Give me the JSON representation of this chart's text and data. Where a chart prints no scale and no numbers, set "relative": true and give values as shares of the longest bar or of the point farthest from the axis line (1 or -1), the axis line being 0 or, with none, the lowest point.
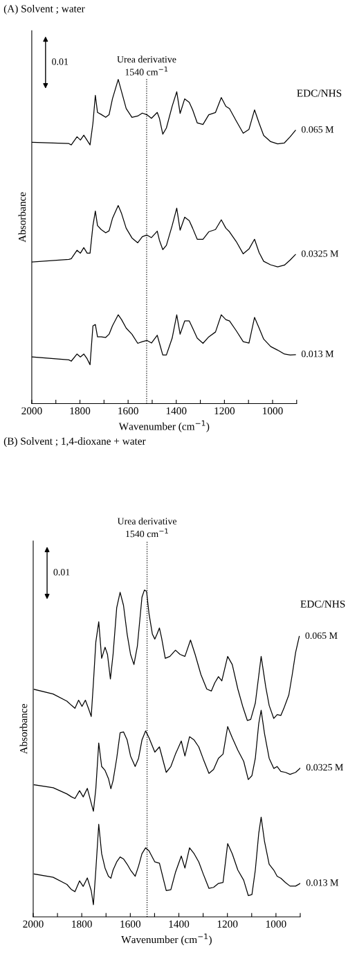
{
  "chart_data": [
    {
      "type": "line",
      "title": "(A) Solvent ; water",
      "xlabel": "Wavenumber (cm$^{−1}$)",
      "ylabel": "Absorbance",
      "relative": true,
      "xlim": [
        2000,
        900
      ],
      "xticks": [
        2000,
        {
          "value": 1900,
          "label": null
        },
        1800,
        {
          "value": 1700,
          "label": null
        },
        1600,
        {
          "value": 1500,
          "label": null
        },
        1400,
        {
          "value": 1300,
          "label": null
        },
        1200,
        {
          "value": 1100,
          "label": null
        },
        1000,
        {
          "value": 900,
          "label": null
        }
      ],
      "x": [
        1998,
        1846,
        1836,
        1812,
        1798,
        1784,
        1770,
        1758,
        1746,
        1736,
        1727,
        1712,
        1693,
        1679,
        1665,
        1641,
        1627,
        1608,
        1584,
        1560,
        1541,
        1522,
        1503,
        1479,
        1470,
        1456,
        1441,
        1417,
        1398,
        1384,
        1365,
        1346,
        1332,
        1313,
        1289,
        1265,
        1237,
        1213,
        1194,
        1179,
        1151,
        1122,
        1098,
        1075,
        1056,
        1037,
        1008,
        979,
        951,
        927,
        905
      ],
      "series": [
        {
          "name": "0.065 M",
          "color": "#000000",
          "values": [
            0.806,
            0.802,
            0.798,
            0.823,
            0.813,
            0.828,
            0.812,
            0.798,
            0.865,
            0.951,
            0.898,
            0.892,
            0.883,
            0.891,
            0.94,
            1.0,
            0.962,
            0.91,
            0.883,
            0.887,
            0.896,
            0.891,
            0.88,
            0.898,
            0.88,
            0.831,
            0.85,
            0.917,
            0.962,
            0.895,
            0.94,
            0.929,
            0.906,
            0.866,
            0.861,
            0.891,
            0.898,
            0.944,
            0.917,
            0.91,
            0.872,
            0.834,
            0.846,
            0.906,
            0.865,
            0.827,
            0.808,
            0.801,
            0.804,
            0.823,
            0.843
          ]
        },
        {
          "name": "0.0325 M",
          "color": "#000000",
          "values": [
            0.437,
            0.445,
            0.447,
            0.473,
            0.464,
            0.481,
            0.464,
            0.464,
            0.549,
            0.594,
            0.549,
            0.537,
            0.527,
            0.533,
            0.571,
            0.611,
            0.586,
            0.541,
            0.511,
            0.496,
            0.515,
            0.52,
            0.512,
            0.532,
            0.504,
            0.475,
            0.488,
            0.549,
            0.603,
            0.535,
            0.575,
            0.564,
            0.541,
            0.507,
            0.507,
            0.53,
            0.537,
            0.567,
            0.541,
            0.53,
            0.5,
            0.462,
            0.477,
            0.507,
            0.466,
            0.439,
            0.428,
            0.422,
            0.427,
            0.443,
            0.46
          ]
        },
        {
          "name": "0.013 M",
          "color": "#000000",
          "values": [
            0.144,
            0.135,
            0.131,
            0.153,
            0.144,
            0.153,
            0.138,
            0.12,
            0.24,
            0.244,
            0.206,
            0.206,
            0.204,
            0.214,
            0.24,
            0.274,
            0.259,
            0.233,
            0.214,
            0.186,
            0.191,
            0.195,
            0.187,
            0.211,
            0.187,
            0.15,
            0.15,
            0.202,
            0.274,
            0.214,
            0.255,
            0.255,
            0.233,
            0.202,
            0.186,
            0.206,
            0.221,
            0.274,
            0.259,
            0.255,
            0.225,
            0.191,
            0.187,
            0.266,
            0.233,
            0.199,
            0.176,
            0.165,
            0.153,
            0.15,
            0.151
          ]
        }
      ],
      "ref_lines": [
        {
          "axis": "x",
          "value": 1523,
          "label": "Urea derivative\n1540 cm$^{−1}$",
          "color": "#000000",
          "line_style": "dotted"
        }
      ],
      "annotations": [
        "0.01",
        "EDC/NHS"
      ],
      "line_style": "solid",
      "grid": false,
      "legend": false
    },
    {
      "type": "line",
      "title": "(B) Solvent ; 1,4-dioxane + water",
      "xlabel": "Wavenumber (cm$^{−1}$)",
      "ylabel": "Absorbance",
      "relative": true,
      "xlim": [
        2000,
        900
      ],
      "xticks": [
        2000,
        {
          "value": 1900,
          "label": null
        },
        1800,
        {
          "value": 1700,
          "label": null
        },
        1600,
        {
          "value": 1500,
          "label": null
        },
        1400,
        {
          "value": 1300,
          "label": null
        },
        1200,
        {
          "value": 1100,
          "label": null
        },
        1000,
        {
          "value": 900,
          "label": null
        }
      ],
      "series": [
        {
          "name": "0.065 M",
          "color": "#000000",
          "x": [
            1996,
            1918,
            1861,
            1842,
            1828,
            1813,
            1799,
            1785,
            1771,
            1761,
            1752,
            1742,
            1730,
            1718,
            1704,
            1694,
            1682,
            1671,
            1656,
            1642,
            1628,
            1613,
            1599,
            1585,
            1571,
            1552,
            1542,
            1533,
            1523,
            1509,
            1499,
            1490,
            1480,
            1471,
            1456,
            1437,
            1414,
            1395,
            1375,
            1352,
            1333,
            1309,
            1285,
            1266,
            1252,
            1237,
            1223,
            1199,
            1180,
            1157,
            1137,
            1118,
            1104,
            1085,
            1061,
            1042,
            1028,
            1009,
            995,
            980,
            966,
            947,
            933,
            919,
            904
          ],
          "values": [
            0.696,
            0.682,
            0.66,
            0.647,
            0.638,
            0.663,
            0.644,
            0.663,
            0.635,
            0.613,
            0.716,
            0.841,
            0.903,
            0.791,
            0.825,
            0.803,
            0.728,
            0.803,
            0.946,
            0.993,
            0.953,
            0.865,
            0.803,
            0.772,
            0.828,
            0.978,
            1.0,
            0.996,
            0.928,
            0.865,
            0.85,
            0.865,
            0.884,
            0.853,
            0.791,
            0.797,
            0.816,
            0.803,
            0.797,
            0.847,
            0.803,
            0.741,
            0.697,
            0.691,
            0.716,
            0.735,
            0.722,
            0.797,
            0.772,
            0.697,
            0.644,
            0.601,
            0.604,
            0.654,
            0.797,
            0.703,
            0.647,
            0.607,
            0.619,
            0.616,
            0.641,
            0.679,
            0.741,
            0.809,
            0.858
          ]
        },
        {
          "name": "0.0325 M",
          "color": "#000000",
          "x": [
            1996,
            1918,
            1861,
            1842,
            1828,
            1809,
            1794,
            1777,
            1761,
            1752,
            1742,
            1730,
            1718,
            1704,
            1690,
            1680,
            1671,
            1656,
            1642,
            1628,
            1613,
            1599,
            1580,
            1566,
            1552,
            1537,
            1523,
            1499,
            1480,
            1452,
            1433,
            1414,
            1390,
            1375,
            1356,
            1337,
            1318,
            1299,
            1276,
            1257,
            1237,
            1218,
            1199,
            1180,
            1157,
            1133,
            1114,
            1099,
            1085,
            1071,
            1061,
            1047,
            1028,
            1009,
            995,
            980,
            961,
            942,
            919,
            900
          ],
          "values": [
            0.404,
            0.395,
            0.376,
            0.367,
            0.362,
            0.386,
            0.367,
            0.393,
            0.348,
            0.323,
            0.392,
            0.532,
            0.46,
            0.448,
            0.423,
            0.392,
            0.417,
            0.485,
            0.563,
            0.566,
            0.541,
            0.492,
            0.46,
            0.485,
            0.541,
            0.569,
            0.548,
            0.504,
            0.52,
            0.442,
            0.46,
            0.498,
            0.538,
            0.492,
            0.551,
            0.541,
            0.52,
            0.482,
            0.439,
            0.451,
            0.485,
            0.498,
            0.582,
            0.548,
            0.51,
            0.476,
            0.42,
            0.432,
            0.485,
            0.591,
            0.632,
            0.56,
            0.485,
            0.454,
            0.46,
            0.445,
            0.442,
            0.436,
            0.442,
            0.455
          ]
        },
        {
          "name": "0.013 M",
          "color": "#000000",
          "x": [
            1996,
            1918,
            1861,
            1842,
            1828,
            1809,
            1794,
            1777,
            1761,
            1752,
            1742,
            1730,
            1718,
            1704,
            1690,
            1680,
            1671,
            1656,
            1642,
            1628,
            1613,
            1599,
            1580,
            1566,
            1552,
            1537,
            1523,
            1499,
            1480,
            1452,
            1433,
            1414,
            1390,
            1375,
            1356,
            1337,
            1318,
            1299,
            1276,
            1257,
            1237,
            1218,
            1199,
            1180,
            1157,
            1133,
            1114,
            1099,
            1085,
            1071,
            1061,
            1047,
            1028,
            1009,
            995,
            980,
            961,
            942,
            919,
            900
          ],
          "values": [
            0.131,
            0.121,
            0.099,
            0.083,
            0.077,
            0.11,
            0.093,
            0.119,
            0.08,
            0.037,
            0.143,
            0.283,
            0.193,
            0.149,
            0.124,
            0.118,
            0.143,
            0.168,
            0.183,
            0.177,
            0.161,
            0.143,
            0.124,
            0.155,
            0.193,
            0.211,
            0.202,
            0.168,
            0.164,
            0.08,
            0.083,
            0.136,
            0.186,
            0.149,
            0.211,
            0.193,
            0.168,
            0.13,
            0.087,
            0.09,
            0.102,
            0.105,
            0.224,
            0.193,
            0.143,
            0.112,
            0.065,
            0.068,
            0.143,
            0.255,
            0.305,
            0.23,
            0.161,
            0.143,
            0.124,
            0.118,
            0.105,
            0.094,
            0.094,
            0.102
          ]
        }
      ],
      "ref_lines": [
        {
          "axis": "x",
          "value": 1531,
          "label": "Urea derivative\n1540 cm$^{−1}$",
          "color": "#000000",
          "line_style": "dotted"
        }
      ],
      "annotations": [
        "0.01",
        "EDC/NHS"
      ],
      "line_style": "solid",
      "grid": false,
      "legend": false
    }
  ]
}
